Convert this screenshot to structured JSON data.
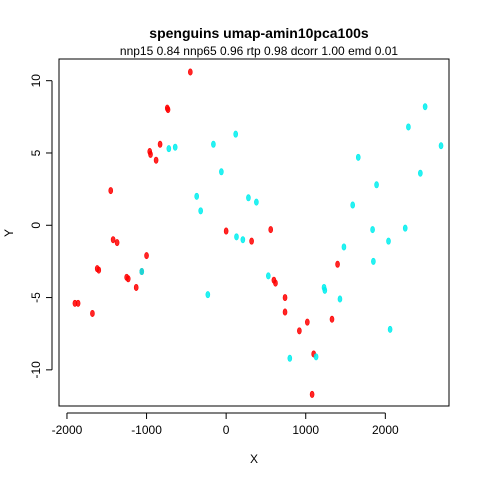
{
  "chart_data": {
    "type": "scatter",
    "title": "spenguins umap-amin10pca100s",
    "subtitle": "nnp15 0.84 nnp65 0.96 rtp 0.98 dcorr 1.00 emd 0.01",
    "xlabel": "X",
    "ylabel": "Y",
    "xlim": [
      -2100,
      2800
    ],
    "ylim": [
      -12.5,
      11.5
    ],
    "xticks": [
      -2000,
      -1000,
      0,
      1000,
      2000
    ],
    "yticks": [
      -10,
      -5,
      0,
      5,
      10
    ],
    "grid": false,
    "legend": "none",
    "series": [
      {
        "color": "#ff0000",
        "x": [
          -1900,
          -1860,
          -1680,
          -1620,
          -1600,
          -1450,
          -1420,
          -1370,
          -1250,
          -1230,
          -1130,
          -1060,
          -1000,
          -960,
          -950,
          -880,
          -830,
          -740,
          -730,
          -450,
          0,
          320,
          560,
          600,
          620,
          740,
          740,
          920,
          1020,
          1080,
          1100,
          1330,
          1400
        ],
        "y": [
          -5.4,
          -5.4,
          -6.1,
          -3.0,
          -3.1,
          2.4,
          -1.0,
          -1.2,
          -3.6,
          -3.7,
          -4.3,
          -3.2,
          -2.1,
          5.1,
          4.9,
          4.5,
          5.6,
          8.1,
          8.0,
          10.6,
          -0.4,
          -1.1,
          -0.3,
          -3.8,
          -4.0,
          -5.0,
          -6.0,
          -7.3,
          -6.7,
          -11.7,
          -8.9,
          -6.5,
          -2.7
        ]
      },
      {
        "color": "#00eeee",
        "x": [
          -1060,
          -720,
          -640,
          -370,
          -320,
          -230,
          -160,
          -60,
          120,
          130,
          280,
          380,
          530,
          1230,
          1240,
          1430,
          1480,
          1590,
          1660,
          1840,
          1850,
          1890,
          2040,
          2060,
          2250,
          2290,
          2440,
          2500,
          2700,
          210,
          800,
          1130
        ],
        "y": [
          -3.2,
          5.3,
          5.4,
          2.0,
          1.0,
          -4.8,
          5.6,
          3.7,
          6.3,
          -0.8,
          1.9,
          1.6,
          -3.5,
          -4.3,
          -4.5,
          -5.1,
          -1.5,
          1.4,
          4.7,
          -0.3,
          -2.5,
          2.8,
          -1.1,
          -7.2,
          -0.2,
          6.8,
          3.6,
          8.2,
          5.5,
          -1.0,
          -9.2,
          -9.1
        ]
      }
    ]
  }
}
